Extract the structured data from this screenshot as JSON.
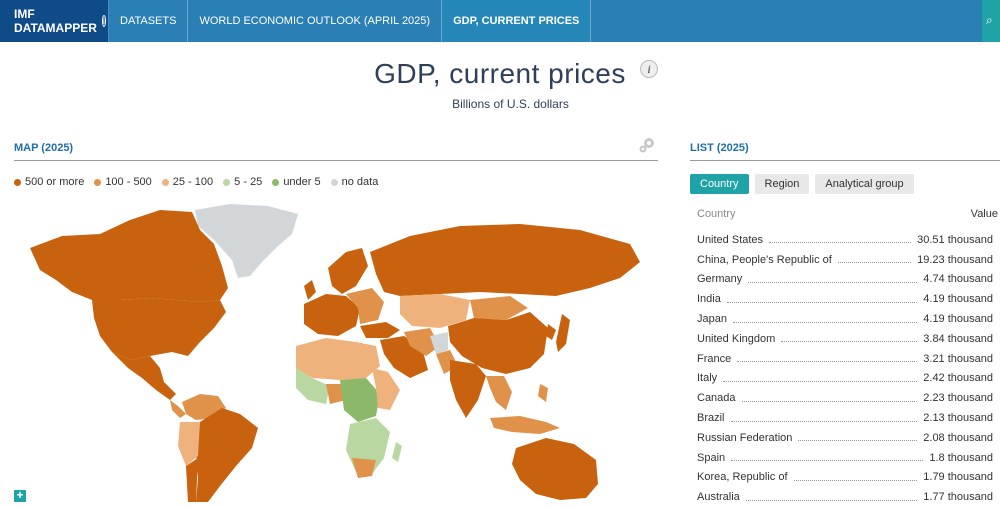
{
  "nav": {
    "brand": "IMF DATAMAPPER",
    "crumbs": [
      "DATASETS",
      "WORLD ECONOMIC OUTLOOK (APRIL 2025)",
      "GDP, CURRENT PRICES"
    ]
  },
  "header": {
    "title": "GDP, current prices",
    "info_label": "i",
    "subtitle": "Billions of U.S. dollars"
  },
  "map": {
    "label": "MAP (2025)",
    "legend": [
      {
        "label": "500 or more",
        "color": "#c8620e"
      },
      {
        "label": "100 - 500",
        "color": "#e0914a"
      },
      {
        "label": "25 - 100",
        "color": "#efb27c"
      },
      {
        "label": "5 - 25",
        "color": "#b9d7a0"
      },
      {
        "label": "under 5",
        "color": "#8cb86a"
      },
      {
        "label": "no data",
        "color": "#d3d6d9"
      }
    ],
    "zoom_label": "+"
  },
  "list": {
    "label": "LIST (2025)",
    "tabs": [
      "Country",
      "Region",
      "Analytical group"
    ],
    "col_country": "Country",
    "col_value": "Value",
    "rows": [
      {
        "name": "United States",
        "value": "30.51 thousand"
      },
      {
        "name": "China, People's Republic of",
        "value": "19.23 thousand"
      },
      {
        "name": "Germany",
        "value": "4.74 thousand"
      },
      {
        "name": "India",
        "value": "4.19 thousand"
      },
      {
        "name": "Japan",
        "value": "4.19 thousand"
      },
      {
        "name": "United Kingdom",
        "value": "3.84 thousand"
      },
      {
        "name": "France",
        "value": "3.21 thousand"
      },
      {
        "name": "Italy",
        "value": "2.42 thousand"
      },
      {
        "name": "Canada",
        "value": "2.23 thousand"
      },
      {
        "name": "Brazil",
        "value": "2.13 thousand"
      },
      {
        "name": "Russian Federation",
        "value": "2.08 thousand"
      },
      {
        "name": "Spain",
        "value": "1.8 thousand"
      },
      {
        "name": "Korea, Republic of",
        "value": "1.79 thousand"
      },
      {
        "name": "Australia",
        "value": "1.77 thousand"
      }
    ]
  }
}
